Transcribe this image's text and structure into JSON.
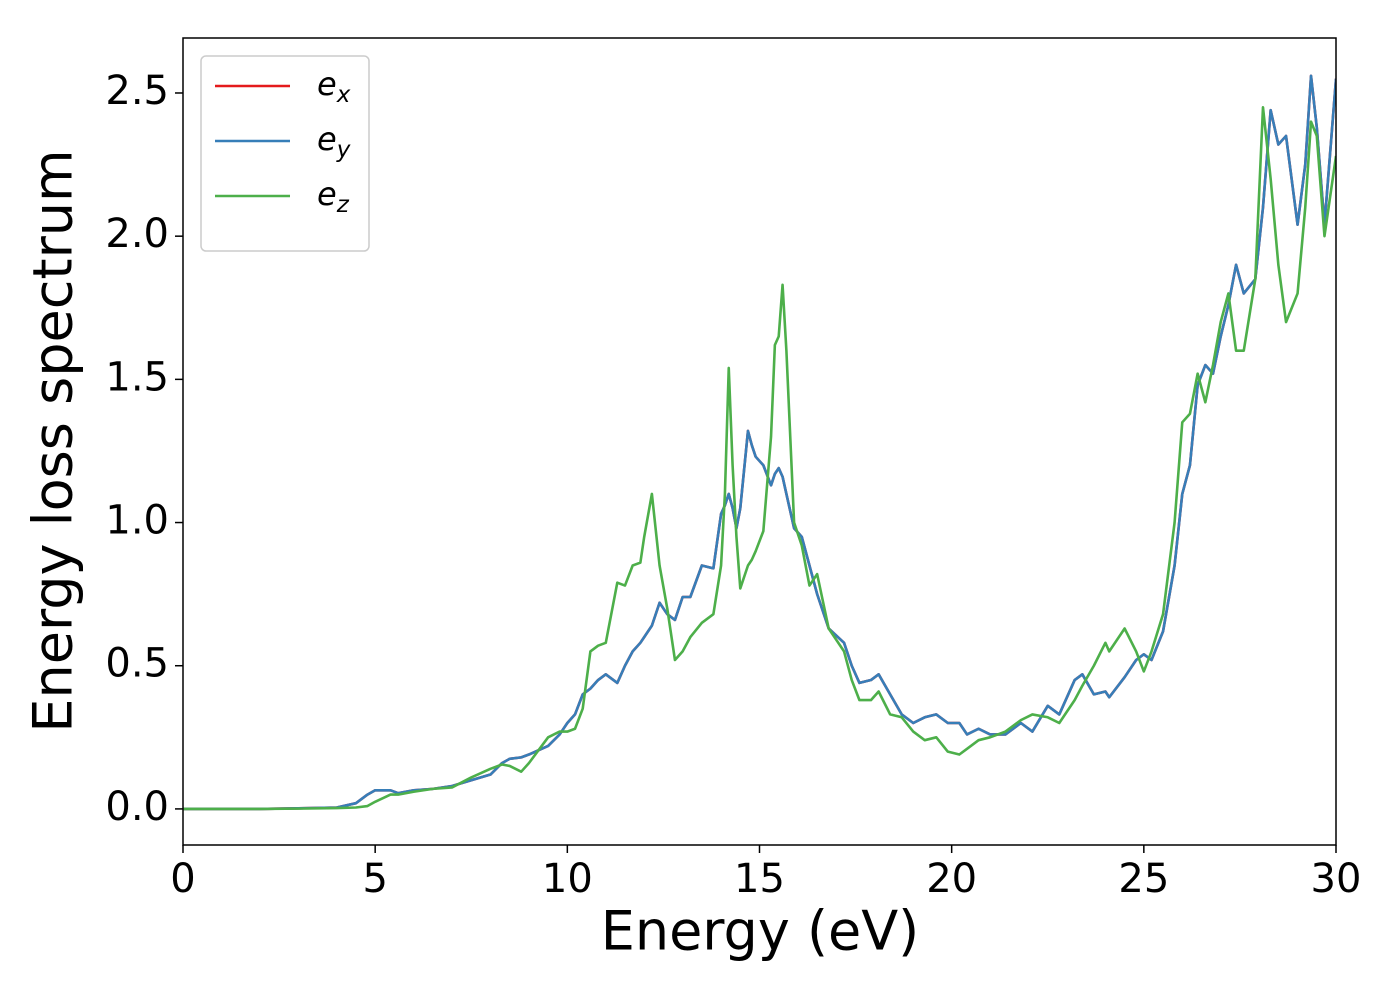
{
  "chart_data": {
    "type": "line",
    "xlabel": "Energy (eV)",
    "ylabel": "Energy loss spectrum",
    "xlim": [
      0,
      30
    ],
    "xticks": [
      0,
      5,
      10,
      15,
      20,
      25,
      30
    ],
    "ylim": [
      -0.126,
      2.692
    ],
    "yticks": [
      {
        "value": 0,
        "label": "0.0"
      },
      0.5,
      {
        "value": 1,
        "label": "1.0"
      },
      1.5,
      {
        "value": 2,
        "label": "2.0"
      },
      2.5
    ],
    "legend": "upper left",
    "x": [
      0,
      1,
      2,
      3,
      4,
      4.5,
      4.8,
      5,
      5.4,
      5.6,
      6,
      6.5,
      7,
      7.5,
      8,
      8.3,
      8.5,
      8.8,
      9,
      9.5,
      9.8,
      10,
      10.2,
      10.4,
      10.6,
      10.8,
      11,
      11.3,
      11.5,
      11.7,
      11.9,
      12,
      12.2,
      12.4,
      12.6,
      12.8,
      13,
      13.2,
      13.5,
      13.8,
      14,
      14.1,
      14.2,
      14.3,
      14.4,
      14.5,
      14.7,
      14.8,
      14.9,
      15.1,
      15.3,
      15.4,
      15.5,
      15.6,
      15.7,
      15.9,
      16.1,
      16.3,
      16.5,
      16.8,
      17.2,
      17.4,
      17.6,
      17.9,
      18.1,
      18.4,
      18.7,
      19,
      19.3,
      19.6,
      19.9,
      20.2,
      20.4,
      20.7,
      21,
      21.4,
      21.8,
      22.1,
      22.5,
      22.8,
      23.2,
      23.4,
      23.7,
      24,
      24.1,
      24.5,
      24.8,
      25,
      25.2,
      25.5,
      25.8,
      26,
      26.2,
      26.4,
      26.6,
      26.8,
      27,
      27.2,
      27.4,
      27.6,
      27.9,
      28.1,
      28.3,
      28.5,
      28.7,
      29,
      29.2,
      29.35,
      29.5,
      29.7,
      30
    ],
    "series": [
      {
        "name": "e_x",
        "color": "#e41a1c",
        "values": [
          0,
          0,
          0,
          0.002,
          0.005,
          0.02,
          0.05,
          0.065,
          0.065,
          0.055,
          0.065,
          0.07,
          0.08,
          0.1,
          0.12,
          0.16,
          0.175,
          0.18,
          0.19,
          0.22,
          0.26,
          0.3,
          0.33,
          0.4,
          0.42,
          0.45,
          0.47,
          0.44,
          0.5,
          0.55,
          0.58,
          0.6,
          0.64,
          0.72,
          0.68,
          0.66,
          0.74,
          0.74,
          0.85,
          0.84,
          1.03,
          1.06,
          1.1,
          1.05,
          0.98,
          1.05,
          1.32,
          1.27,
          1.23,
          1.2,
          1.13,
          1.17,
          1.19,
          1.16,
          1.1,
          0.98,
          0.95,
          0.85,
          0.75,
          0.63,
          0.58,
          0.5,
          0.44,
          0.45,
          0.47,
          0.4,
          0.33,
          0.3,
          0.32,
          0.33,
          0.3,
          0.3,
          0.26,
          0.28,
          0.26,
          0.26,
          0.3,
          0.27,
          0.36,
          0.33,
          0.45,
          0.47,
          0.4,
          0.41,
          0.39,
          0.46,
          0.52,
          0.54,
          0.52,
          0.62,
          0.85,
          1.1,
          1.2,
          1.48,
          1.55,
          1.52,
          1.65,
          1.76,
          1.9,
          1.8,
          1.85,
          2.1,
          2.44,
          2.32,
          2.35,
          2.04,
          2.25,
          2.56,
          2.38,
          2.04,
          2.55
        ]
      },
      {
        "name": "e_y",
        "color": "#377eb8",
        "values": [
          0,
          0,
          0,
          0.002,
          0.005,
          0.02,
          0.05,
          0.065,
          0.065,
          0.055,
          0.065,
          0.07,
          0.08,
          0.1,
          0.12,
          0.16,
          0.175,
          0.18,
          0.19,
          0.22,
          0.26,
          0.3,
          0.33,
          0.4,
          0.42,
          0.45,
          0.47,
          0.44,
          0.5,
          0.55,
          0.58,
          0.6,
          0.64,
          0.72,
          0.68,
          0.66,
          0.74,
          0.74,
          0.85,
          0.84,
          1.03,
          1.06,
          1.1,
          1.05,
          0.98,
          1.05,
          1.32,
          1.27,
          1.23,
          1.2,
          1.13,
          1.17,
          1.19,
          1.16,
          1.1,
          0.98,
          0.95,
          0.85,
          0.75,
          0.63,
          0.58,
          0.5,
          0.44,
          0.45,
          0.47,
          0.4,
          0.33,
          0.3,
          0.32,
          0.33,
          0.3,
          0.3,
          0.26,
          0.28,
          0.26,
          0.26,
          0.3,
          0.27,
          0.36,
          0.33,
          0.45,
          0.47,
          0.4,
          0.41,
          0.39,
          0.46,
          0.52,
          0.54,
          0.52,
          0.62,
          0.85,
          1.1,
          1.2,
          1.48,
          1.55,
          1.52,
          1.65,
          1.76,
          1.9,
          1.8,
          1.85,
          2.1,
          2.44,
          2.32,
          2.35,
          2.04,
          2.25,
          2.56,
          2.38,
          2.04,
          2.55
        ]
      },
      {
        "name": "e_z",
        "color": "#4daf4a",
        "values": [
          0,
          0,
          0,
          0.001,
          0.003,
          0.005,
          0.01,
          0.025,
          0.05,
          0.05,
          0.06,
          0.07,
          0.075,
          0.11,
          0.14,
          0.155,
          0.15,
          0.13,
          0.16,
          0.25,
          0.27,
          0.27,
          0.28,
          0.35,
          0.55,
          0.57,
          0.58,
          0.79,
          0.78,
          0.85,
          0.86,
          0.95,
          1.1,
          0.85,
          0.7,
          0.52,
          0.55,
          0.6,
          0.65,
          0.68,
          0.85,
          1.1,
          1.54,
          1.2,
          0.95,
          0.77,
          0.85,
          0.87,
          0.9,
          0.97,
          1.3,
          1.62,
          1.65,
          1.83,
          1.6,
          1.0,
          0.92,
          0.78,
          0.82,
          0.63,
          0.55,
          0.45,
          0.38,
          0.38,
          0.41,
          0.33,
          0.32,
          0.27,
          0.24,
          0.25,
          0.2,
          0.19,
          0.21,
          0.24,
          0.25,
          0.27,
          0.31,
          0.33,
          0.32,
          0.3,
          0.38,
          0.43,
          0.5,
          0.58,
          0.55,
          0.63,
          0.55,
          0.48,
          0.55,
          0.68,
          1.0,
          1.35,
          1.38,
          1.52,
          1.42,
          1.55,
          1.7,
          1.8,
          1.6,
          1.6,
          1.85,
          2.45,
          2.2,
          1.9,
          1.7,
          1.8,
          2.1,
          2.4,
          2.35,
          2.0,
          2.28
        ]
      }
    ]
  }
}
